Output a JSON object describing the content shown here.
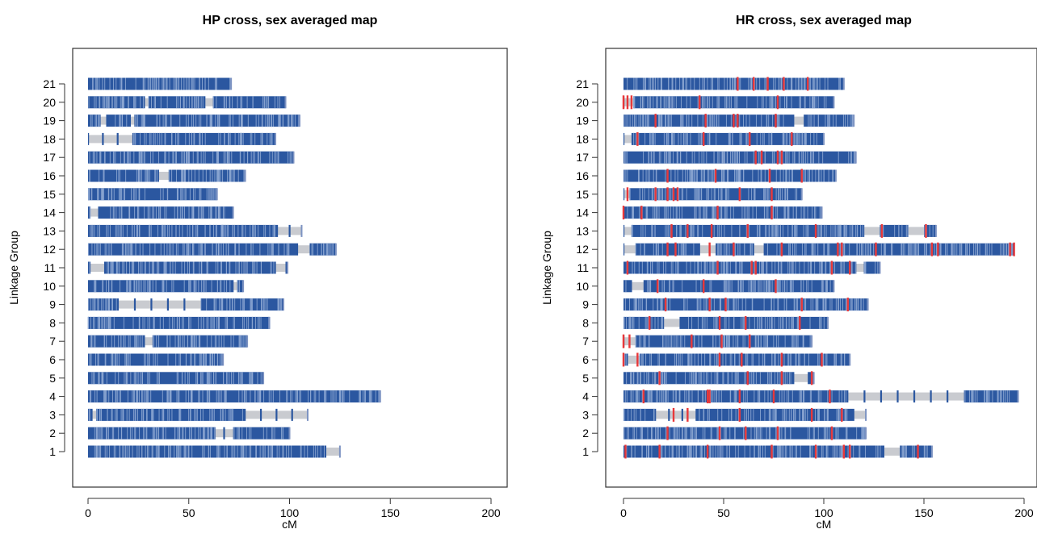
{
  "chart_data": [
    {
      "type": "linkage-map",
      "title": "HP cross, sex averaged map",
      "xlabel": "cM",
      "ylabel": "Linkage Group",
      "xlim": [
        0,
        200
      ],
      "xticks": [
        0,
        50,
        100,
        150,
        200
      ],
      "categories": [
        "1",
        "2",
        "3",
        "4",
        "5",
        "6",
        "7",
        "8",
        "9",
        "10",
        "11",
        "12",
        "13",
        "14",
        "15",
        "16",
        "17",
        "18",
        "19",
        "20",
        "21"
      ],
      "series": [
        {
          "name": "",
          "values": [
            125,
            100,
            109,
            145,
            87,
            67,
            79,
            90,
            97,
            77,
            99,
            123,
            106,
            72,
            64,
            78,
            102,
            93,
            105,
            98,
            71
          ]
        }
      ],
      "gaps": [
        [
          [
            118,
            125
          ]
        ],
        [
          [
            63,
            72
          ]
        ],
        [
          [
            2,
            4
          ],
          [
            78,
            109
          ]
        ],
        [],
        [
          [
            92,
            96
          ]
        ],
        [],
        [
          [
            28,
            32
          ]
        ],
        [],
        [
          [
            15,
            56
          ]
        ],
        [
          [
            72,
            74
          ]
        ],
        [
          [
            1,
            8
          ],
          [
            93,
            98
          ]
        ],
        [
          [
            104,
            110
          ]
        ],
        [
          [
            94,
            106
          ]
        ],
        [
          [
            1,
            5
          ]
        ],
        [],
        [
          [
            35,
            40
          ]
        ],
        [],
        [
          [
            0,
            22
          ]
        ],
        [
          [
            6,
            9
          ],
          [
            21,
            23
          ]
        ],
        [
          [
            28,
            30
          ],
          [
            58,
            62
          ]
        ],
        []
      ],
      "highlight_markers": []
    },
    {
      "type": "linkage-map",
      "title": "HR cross, sex averaged map",
      "xlabel": "cM",
      "ylabel": "Linkage Group",
      "xlim": [
        0,
        200
      ],
      "xticks": [
        0,
        50,
        100,
        150,
        200
      ],
      "categories": [
        "1",
        "2",
        "3",
        "4",
        "5",
        "6",
        "7",
        "8",
        "9",
        "10",
        "11",
        "12",
        "13",
        "14",
        "15",
        "16",
        "17",
        "18",
        "19",
        "20",
        "21"
      ],
      "series": [
        {
          "name": "",
          "values": [
            154,
            121,
            121,
            197,
            95,
            113,
            94,
            102,
            122,
            105,
            128,
            195,
            156,
            99,
            89,
            106,
            116,
            100,
            115,
            105,
            110
          ]
        }
      ],
      "gaps": [
        [
          [
            130,
            138
          ]
        ],
        [],
        [
          [
            16,
            36
          ],
          [
            115,
            121
          ]
        ],
        [
          [
            112,
            170
          ]
        ],
        [
          [
            85,
            92
          ]
        ],
        [
          [
            2,
            8
          ]
        ],
        [
          [
            0,
            6
          ]
        ],
        [
          [
            20,
            28
          ]
        ],
        [],
        [
          [
            4,
            10
          ]
        ],
        [
          [
            116,
            120
          ]
        ],
        [
          [
            0,
            6
          ],
          [
            38,
            46
          ],
          [
            65,
            70
          ]
        ],
        [
          [
            0,
            4
          ],
          [
            120,
            128
          ],
          [
            142,
            150
          ]
        ],
        [],
        [
          [
            0,
            3
          ]
        ],
        [],
        [],
        [
          [
            0,
            4
          ]
        ],
        [
          [
            85,
            90
          ]
        ],
        [
          [
            0,
            5
          ]
        ],
        []
      ],
      "highlight_markers": [
        [
          1,
          18,
          42,
          74,
          96,
          110,
          113,
          147
        ],
        [
          22,
          48,
          61,
          77,
          104
        ],
        [
          25,
          32,
          58,
          94,
          109
        ],
        [
          10,
          42,
          43,
          58,
          75,
          103
        ],
        [
          18,
          62,
          79,
          94
        ],
        [
          0,
          7,
          48,
          59,
          79,
          99
        ],
        [
          0,
          3,
          34,
          49,
          63
        ],
        [
          13,
          48,
          61,
          88
        ],
        [
          21,
          43,
          51,
          89,
          112
        ],
        [
          17,
          40,
          76
        ],
        [
          2,
          47,
          64,
          66,
          104,
          113
        ],
        [
          22,
          26,
          43,
          55,
          79,
          107,
          109,
          126,
          154,
          157,
          193,
          195
        ],
        [
          24,
          32,
          44,
          62,
          96,
          129,
          151
        ],
        [
          0,
          9,
          47,
          74
        ],
        [
          2,
          16,
          22,
          25,
          27,
          58,
          74
        ],
        [
          22,
          46,
          73,
          89
        ],
        [
          66,
          69,
          77,
          79
        ],
        [
          7,
          40,
          63,
          84
        ],
        [
          16,
          41,
          55,
          57,
          76
        ],
        [
          0,
          2,
          4,
          38,
          77
        ],
        [
          57,
          65,
          72,
          80,
          92
        ]
      ]
    }
  ]
}
